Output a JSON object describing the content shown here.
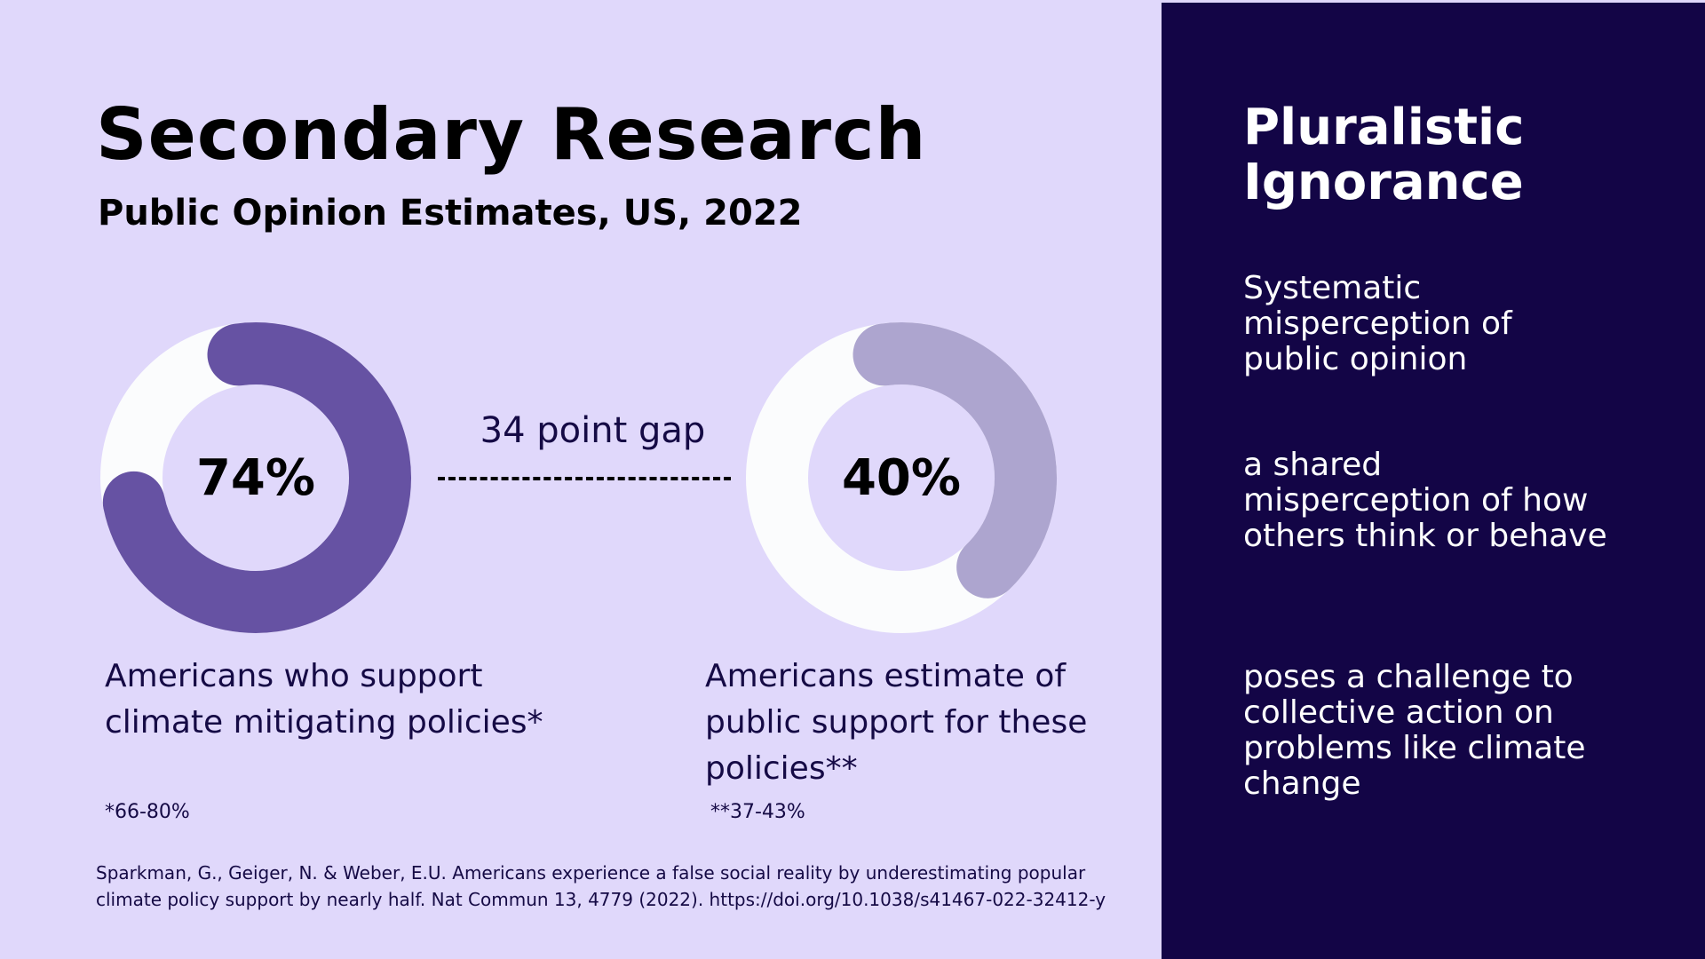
{
  "header": {
    "title": "Secondary Research",
    "subtitle": "Public Opinion Estimates, US, 2022"
  },
  "colors": {
    "background": "#e0d8fb",
    "sidebar": "#130546",
    "track": "#fbfcfd",
    "actual": "#6652a3",
    "estimate": "#ada5cf"
  },
  "chart_data": {
    "type": "pie",
    "series": [
      {
        "value": 74,
        "label": "74%",
        "color": "#6652a3"
      },
      {
        "value": 40,
        "label": "40%",
        "color": "#ada5cf"
      }
    ]
  },
  "gap": {
    "label": "34 point gap"
  },
  "captions": [
    {
      "text": "Americans who support climate mitigating policies*",
      "footnote": "*66-80%"
    },
    {
      "text": "Americans estimate of public support for these policies**",
      "footnote": "**37-43%"
    }
  ],
  "citation": "Sparkman, G., Geiger, N. & Weber, E.U. Americans experience a false social reality by underestimating popular climate policy support by nearly half. Nat Commun 13, 4779 (2022). https://doi.org/10.1038/s41467-022-32412-y",
  "sidebar": {
    "title": "Pluralistic Ignorance",
    "points": [
      "Systematic misperception of public opinion",
      "a shared misperception of how others think or behave",
      "poses a challenge to collective action on problems like climate change"
    ]
  }
}
